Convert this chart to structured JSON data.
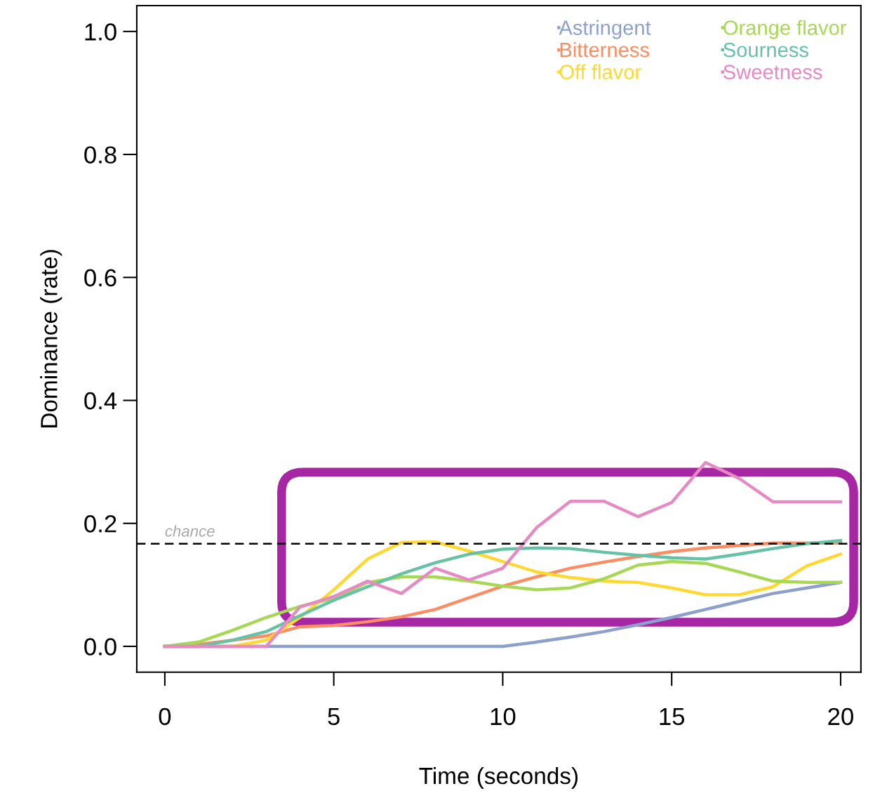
{
  "chart_data": {
    "type": "line",
    "xlabel": "Time (seconds)",
    "ylabel": "Dominance (rate)",
    "x": [
      0,
      1,
      2,
      3,
      4,
      5,
      6,
      7,
      8,
      9,
      10,
      11,
      12,
      13,
      14,
      15,
      16,
      17,
      18,
      19,
      20
    ],
    "series": [
      {
        "name": "Astringent",
        "color": "#8da0cb",
        "values": [
          0,
          0,
          0,
          0,
          0,
          0,
          0,
          0,
          0,
          0,
          0,
          0.007,
          0.015,
          0.024,
          0.035,
          0.047,
          0.06,
          0.073,
          0.086,
          0.095,
          0.104
        ]
      },
      {
        "name": "Bitterness",
        "color": "#fc8d62",
        "values": [
          0,
          0.003,
          0.01,
          0.017,
          0.032,
          0.034,
          0.04,
          0.048,
          0.06,
          0.079,
          0.098,
          0.113,
          0.127,
          0.137,
          0.146,
          0.154,
          0.16,
          0.164,
          0.168,
          0.168,
          0.168
        ]
      },
      {
        "name": "Off flavor",
        "color": "#ffd92f",
        "values": [
          0,
          0,
          0,
          0.01,
          0.047,
          0.092,
          0.142,
          0.169,
          0.17,
          0.155,
          0.138,
          0.121,
          0.112,
          0.106,
          0.104,
          0.095,
          0.084,
          0.084,
          0.097,
          0.131,
          0.15
        ]
      },
      {
        "name": "Orange flavor",
        "color": "#a6d854",
        "values": [
          0,
          0.007,
          0.026,
          0.047,
          0.065,
          0.078,
          0.104,
          0.113,
          0.113,
          0.106,
          0.098,
          0.092,
          0.095,
          0.11,
          0.132,
          0.138,
          0.135,
          0.121,
          0.106,
          0.104,
          0.104
        ]
      },
      {
        "name": "Sourness",
        "color": "#66c2a5",
        "values": [
          0,
          0,
          0.01,
          0.024,
          0.05,
          0.075,
          0.097,
          0.118,
          0.136,
          0.15,
          0.158,
          0.16,
          0.159,
          0.153,
          0.148,
          0.144,
          0.142,
          0.15,
          0.159,
          0.167,
          0.172
        ]
      },
      {
        "name": "Sweetness",
        "color": "#e78ac3",
        "values": [
          0,
          0,
          0,
          0,
          0.064,
          0.081,
          0.106,
          0.086,
          0.127,
          0.108,
          0.127,
          0.193,
          0.236,
          0.236,
          0.211,
          0.234,
          0.299,
          0.273,
          0.235,
          0.235,
          0.235
        ]
      }
    ],
    "xlim": [
      -0.83,
      20.6
    ],
    "ylim": [
      -0.042,
      1.042
    ],
    "xticks": [
      0,
      5,
      10,
      15,
      20
    ],
    "yticks": [
      {
        "value": 0,
        "label": "0.0"
      },
      {
        "value": 0.2,
        "label": "0.2"
      },
      {
        "value": 0.4,
        "label": "0.4"
      },
      {
        "value": 0.6,
        "label": "0.6"
      },
      {
        "value": 0.8,
        "label": "0.8"
      },
      {
        "value": 1.0,
        "label": "1.0"
      }
    ],
    "ref_lines": [
      {
        "axis": "y",
        "value": 0.167,
        "label": "chance",
        "color": "#000000",
        "line_style": "dashed"
      }
    ],
    "legend": "top right",
    "grid": false,
    "marker": "none",
    "line_style": "solid"
  }
}
